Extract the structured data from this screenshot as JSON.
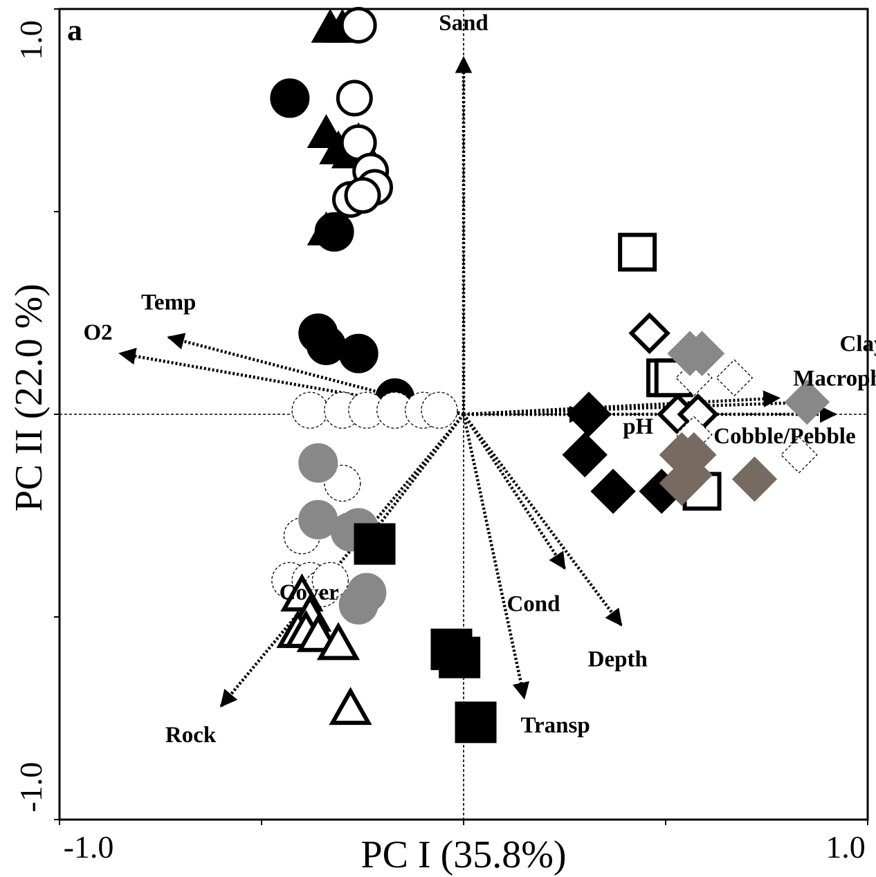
{
  "chart_data": {
    "type": "scatter",
    "title": "",
    "panel_label": "a",
    "xlabel": "PC I (35.8%)",
    "ylabel": "PC II (22.0 %)",
    "xlim": [
      -1.0,
      1.0
    ],
    "ylim": [
      -1.0,
      1.0
    ],
    "x_tick_labels": [
      "-1.0",
      "1.0"
    ],
    "y_tick_labels": [
      "-1.0",
      "1.0"
    ],
    "reference_lines": {
      "x": 0,
      "y": 0
    },
    "vectors": [
      {
        "name": "Sand",
        "x": 0.0,
        "y": 0.88
      },
      {
        "name": "Temp",
        "x": -0.73,
        "y": 0.19
      },
      {
        "name": "O2",
        "x": -0.85,
        "y": 0.15
      },
      {
        "name": "Clay",
        "x": 0.78,
        "y": 0.04
      },
      {
        "name": "Macrophy",
        "x": 0.86,
        "y": 0.03
      },
      {
        "name": "pH",
        "x": 0.3,
        "y": 0.0
      },
      {
        "name": "Cobble/Pebble",
        "x": 0.92,
        "y": 0.0
      },
      {
        "name": "Cond",
        "x": 0.25,
        "y": -0.38
      },
      {
        "name": "Depth",
        "x": 0.39,
        "y": -0.52
      },
      {
        "name": "Transp",
        "x": 0.15,
        "y": -0.7
      },
      {
        "name": "Cover",
        "x": -0.23,
        "y": -0.3
      },
      {
        "name": "Rock",
        "x": -0.6,
        "y": -0.72
      }
    ],
    "vector_color": "#000000",
    "series": [
      {
        "marker": "triangle",
        "fill": "#000000",
        "points": [
          [
            -0.33,
            0.95
          ],
          [
            -0.3,
            0.95
          ],
          [
            -0.34,
            0.69
          ],
          [
            -0.31,
            0.65
          ],
          [
            -0.26,
            0.67
          ],
          [
            -0.28,
            0.64
          ],
          [
            -0.34,
            0.45
          ]
        ]
      },
      {
        "marker": "circle",
        "fill": "#ffffff",
        "points": [
          [
            -0.26,
            0.96
          ],
          [
            -0.27,
            0.78
          ],
          [
            -0.26,
            0.67
          ],
          [
            -0.23,
            0.6
          ],
          [
            -0.22,
            0.56
          ],
          [
            -0.28,
            0.53
          ],
          [
            -0.25,
            0.54
          ]
        ]
      },
      {
        "marker": "circle",
        "fill": "#000000",
        "points": [
          [
            -0.43,
            0.78
          ],
          [
            -0.32,
            0.45
          ],
          [
            -0.36,
            0.2
          ],
          [
            -0.34,
            0.17
          ],
          [
            -0.26,
            0.15
          ],
          [
            -0.17,
            0.04
          ]
        ]
      },
      {
        "marker": "circle",
        "fill": "#ffffff",
        "dashed": true,
        "points": [
          [
            -0.38,
            0.01
          ],
          [
            -0.3,
            0.01
          ],
          [
            -0.24,
            0.01
          ],
          [
            -0.17,
            0.01
          ],
          [
            -0.1,
            0.01
          ],
          [
            -0.06,
            0.01
          ],
          [
            -0.3,
            -0.17
          ],
          [
            -0.4,
            -0.3
          ],
          [
            -0.43,
            -0.41
          ],
          [
            -0.38,
            -0.41
          ],
          [
            -0.35,
            -0.43
          ],
          [
            -0.33,
            -0.41
          ]
        ]
      },
      {
        "marker": "circle",
        "fill": "#888888",
        "points": [
          [
            -0.36,
            -0.12
          ],
          [
            -0.36,
            -0.26
          ],
          [
            -0.28,
            -0.29
          ],
          [
            -0.26,
            -0.28
          ],
          [
            -0.24,
            -0.44
          ],
          [
            -0.26,
            -0.47
          ]
        ]
      },
      {
        "marker": "triangle-open",
        "fill": "#ffffff",
        "points": [
          [
            -0.4,
            -0.45
          ],
          [
            -0.38,
            -0.5
          ],
          [
            -0.41,
            -0.54
          ],
          [
            -0.39,
            -0.54
          ],
          [
            -0.36,
            -0.55
          ],
          [
            -0.31,
            -0.57
          ],
          [
            -0.28,
            -0.73
          ]
        ]
      },
      {
        "marker": "square",
        "fill": "#000000",
        "points": [
          [
            -0.22,
            -0.32
          ],
          [
            -0.03,
            -0.58
          ],
          [
            -0.01,
            -0.6
          ],
          [
            0.03,
            -0.76
          ]
        ]
      },
      {
        "marker": "square-open",
        "fill": "#ffffff",
        "points": [
          [
            0.43,
            0.4
          ],
          [
            0.5,
            0.09
          ],
          [
            0.52,
            0.09
          ],
          [
            0.59,
            -0.19
          ]
        ]
      },
      {
        "marker": "diamond-open",
        "fill": "#ffffff",
        "points": [
          [
            0.46,
            0.2
          ],
          [
            0.53,
            0.0
          ],
          [
            0.58,
            0.0
          ]
        ]
      },
      {
        "marker": "diamond-open",
        "fill": "#ffffff",
        "dashed": true,
        "points": [
          [
            0.57,
            0.09
          ],
          [
            0.67,
            0.09
          ],
          [
            0.57,
            -0.05
          ],
          [
            0.83,
            -0.1
          ]
        ]
      },
      {
        "marker": "diamond",
        "fill": "#888888",
        "points": [
          [
            0.56,
            0.15
          ],
          [
            0.59,
            0.15
          ],
          [
            0.85,
            0.03
          ]
        ]
      },
      {
        "marker": "diamond",
        "fill": "#000000",
        "points": [
          [
            0.31,
            0.0
          ],
          [
            0.3,
            -0.1
          ],
          [
            0.37,
            -0.19
          ],
          [
            0.49,
            -0.19
          ]
        ]
      },
      {
        "marker": "diamond",
        "fill": "#776a60",
        "points": [
          [
            0.54,
            -0.1
          ],
          [
            0.57,
            -0.1
          ],
          [
            0.56,
            -0.15
          ],
          [
            0.54,
            -0.17
          ],
          [
            0.72,
            -0.16
          ]
        ]
      }
    ]
  }
}
